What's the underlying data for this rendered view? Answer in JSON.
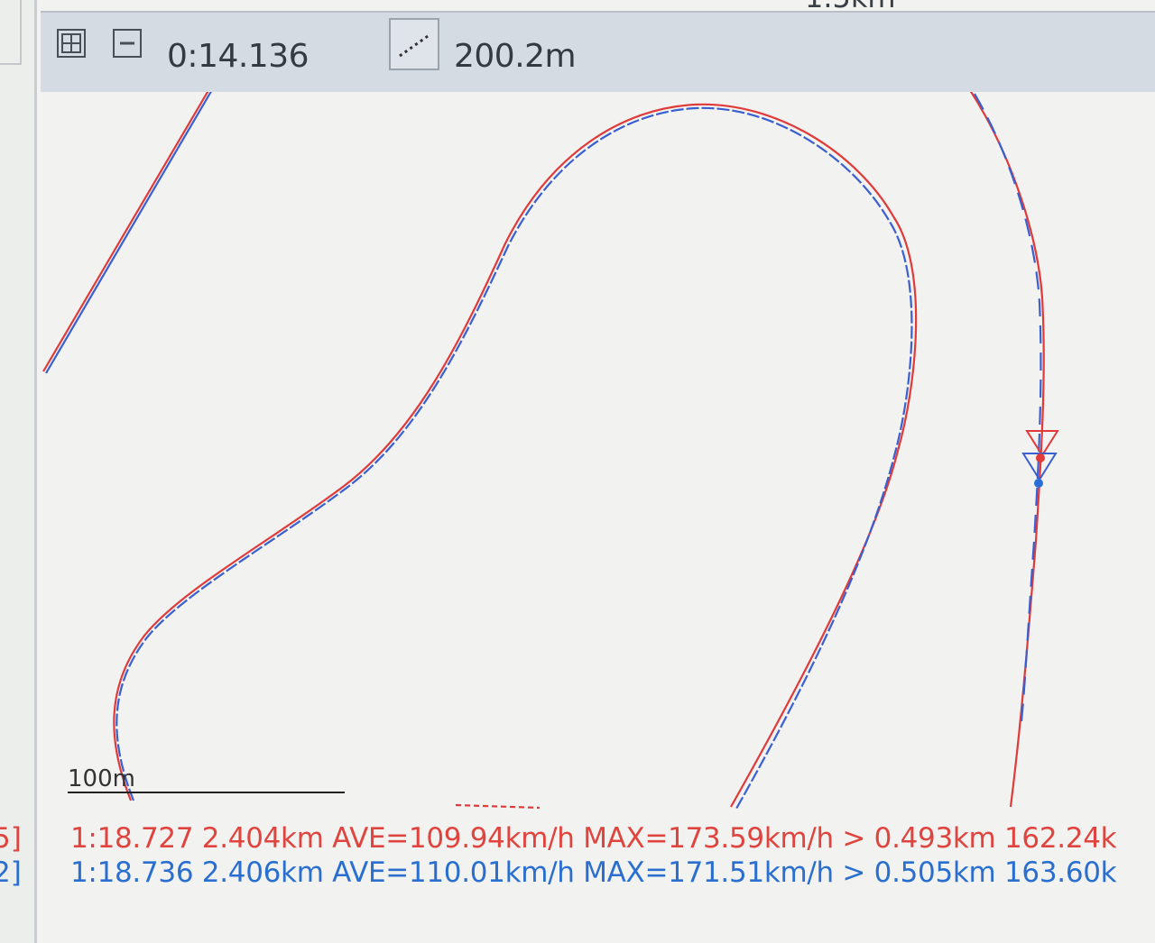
{
  "toolbar": {
    "time": "0:14.136",
    "distance": "200.2m"
  },
  "map": {
    "top_label": "1.5km",
    "scale_label": "100m"
  },
  "laps": [
    {
      "index_fragment": "5]",
      "summary": "1:18.727 2.404km AVE=109.94km/h MAX=173.59km/h > 0.493km 162.24k"
    },
    {
      "index_fragment": "2]",
      "summary": "1:18.736 2.406km AVE=110.01km/h MAX=171.51km/h > 0.505km 163.60k"
    }
  ]
}
